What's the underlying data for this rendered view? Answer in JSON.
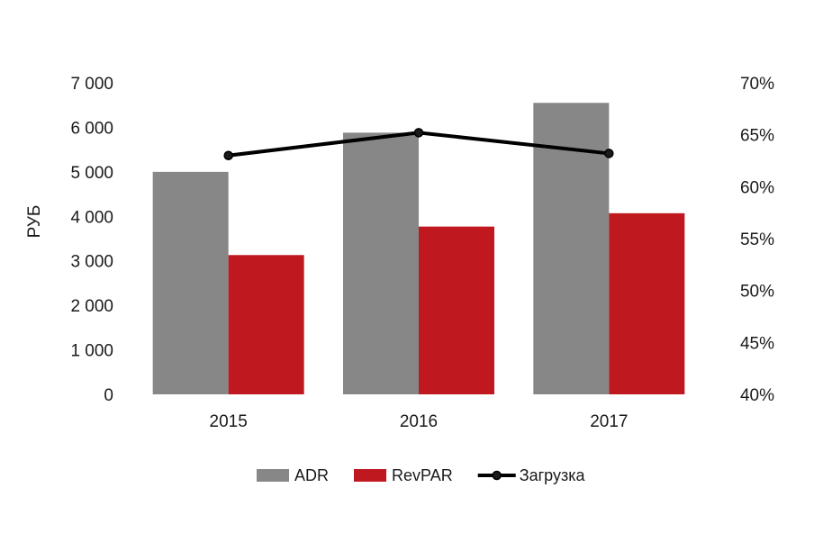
{
  "chart_data": {
    "type": "bar",
    "categories": [
      "2015",
      "2016",
      "2017"
    ],
    "series": [
      {
        "name": "ADR",
        "type": "bar",
        "axis": "left",
        "color": "#878787",
        "values": [
          5000,
          5880,
          6550
        ]
      },
      {
        "name": "RevPAR",
        "type": "bar",
        "axis": "left",
        "color": "#c0181f",
        "values": [
          3130,
          3770,
          4070
        ]
      },
      {
        "name": "Загрузка",
        "type": "line",
        "axis": "right",
        "color": "#000000",
        "values": [
          63.0,
          65.2,
          63.2
        ]
      }
    ],
    "y_left": {
      "label": "РУБ",
      "min": 0,
      "max": 7000,
      "ticks": [
        0,
        1000,
        2000,
        3000,
        4000,
        5000,
        6000,
        7000
      ],
      "tick_labels": [
        "0",
        "1 000",
        "2 000",
        "3 000",
        "4 000",
        "5 000",
        "6 000",
        "7 000"
      ]
    },
    "y_right": {
      "label": "",
      "min": 40,
      "max": 70,
      "ticks": [
        40,
        45,
        50,
        55,
        60,
        65,
        70
      ],
      "tick_labels": [
        "40%",
        "45%",
        "50%",
        "55%",
        "60%",
        "65%",
        "70%"
      ]
    },
    "grid": false,
    "legend_position": "bottom"
  }
}
